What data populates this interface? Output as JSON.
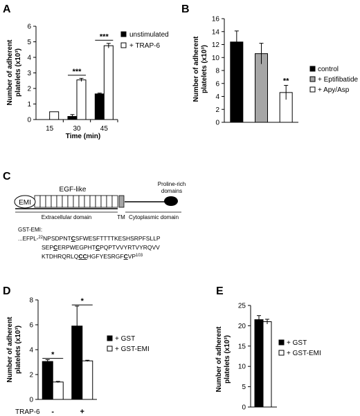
{
  "chart_data": [
    {
      "panel": "A",
      "type": "bar",
      "categories": [
        "15",
        "30",
        "45"
      ],
      "series": [
        {
          "name": "unstimulated",
          "values": [
            null,
            0.2,
            1.65
          ],
          "errors": [
            null,
            0.12,
            0.05
          ],
          "color": "#000000"
        },
        {
          "name": "+ TRAP-6",
          "values": [
            0.5,
            2.55,
            4.75
          ],
          "errors": [
            null,
            0.1,
            0.15
          ],
          "color": "#ffffff"
        }
      ],
      "xlabel": "Time (min)",
      "ylabel": "Number of adherent platelets (x10³)",
      "ylim": [
        0,
        6
      ],
      "yticks": [
        "0",
        "1",
        "2",
        "3",
        "4",
        "5",
        "6"
      ],
      "significance": [
        "***",
        "***"
      ]
    },
    {
      "panel": "B",
      "type": "bar",
      "categories": [
        "control",
        "+ Eptifibatide",
        "+ Apy/Asp"
      ],
      "values": [
        12.4,
        10.6,
        4.6
      ],
      "errors": [
        1.7,
        1.6,
        1.1
      ],
      "colors": [
        "#000000",
        "#a6a6a6",
        "#ffffff"
      ],
      "ylabel": "Number of adherent platelets (x10³)",
      "ylim": [
        0,
        16
      ],
      "yticks": [
        "0",
        "2",
        "4",
        "6",
        "8",
        "10",
        "12",
        "14",
        "16"
      ],
      "significance": [
        "**"
      ]
    },
    {
      "panel": "D",
      "type": "bar",
      "categories": [
        "-",
        "+"
      ],
      "category_title": "TRAP-6",
      "series": [
        {
          "name": "+ GST",
          "values": [
            3.05,
            5.9
          ],
          "errors": [
            0.15,
            1.6
          ],
          "color": "#000000"
        },
        {
          "name": "+ GST-EMI",
          "values": [
            1.4,
            3.1
          ],
          "errors": [
            0.05,
            0.05
          ],
          "color": "#ffffff"
        }
      ],
      "ylabel": "Number of adherent platelets (x10³)",
      "ylim": [
        0,
        8
      ],
      "yticks": [
        "0",
        "2",
        "4",
        "6",
        "8"
      ],
      "significance": [
        "*",
        "*"
      ]
    },
    {
      "panel": "E",
      "type": "bar",
      "series": [
        {
          "name": "+ GST",
          "values": [
            21.5
          ],
          "errors": [
            1.0
          ],
          "color": "#000000"
        },
        {
          "name": "+ GST-EMI",
          "values": [
            21.0
          ],
          "errors": [
            0.6
          ],
          "color": "#ffffff"
        }
      ],
      "ylabel": "Number of adherent platelets (x10³)",
      "ylim": [
        0,
        25
      ],
      "yticks": [
        "0",
        "5",
        "10",
        "15",
        "20",
        "25"
      ]
    }
  ],
  "panels": {
    "A": {
      "letter": "A",
      "xlabel": "Time (min)",
      "ylabel_1": "Number of adherent",
      "ylabel_2": "platelets (x10³)"
    },
    "B": {
      "letter": "B",
      "ylabel_1": "Number of adherent",
      "ylabel_2": "platelets (x10³)"
    },
    "D": {
      "letter": "D",
      "ylabel_1": "Number of adherent",
      "ylabel_2": "platelets (x10³)",
      "category_title": "TRAP-6"
    },
    "E": {
      "letter": "E",
      "ylabel_1": "Number of adherent",
      "ylabel_2": "platelets (x10³)"
    }
  },
  "diagram_c": {
    "letter": "C",
    "emi_label": "EMI",
    "egf_label": "EGF-like",
    "proline_label_1": "Proline-rich",
    "proline_label_2": "domains",
    "extracellular_label": "Extracellular domain",
    "tm_label": "TM",
    "cytoplasmic_label": "Cytoplasmic domain",
    "egf_repeat_count": 15,
    "gst_title": "GST-EMI:",
    "seq_prefix": "...EFPL-",
    "seq_start_sup": "22",
    "seq_line1_a": "NPSDPNT",
    "seq_line1_c": "C",
    "seq_line1_b": "SFWESFTTTTKESHSRPFSLLP",
    "seq_line2_a": "SEP",
    "seq_line2_c1": "C",
    "seq_line2_b": "ERPWEGPHT",
    "seq_line2_c2": "C",
    "seq_line2_d": "PQPTVVYRTVYRQVV",
    "seq_line3_a": "KTDHRQRLQ",
    "seq_line3_c1": "CC",
    "seq_line3_b": "HGFYESRGF",
    "seq_line3_c2": "C",
    "seq_line3_d": "VP",
    "seq_end_sup": "103"
  }
}
